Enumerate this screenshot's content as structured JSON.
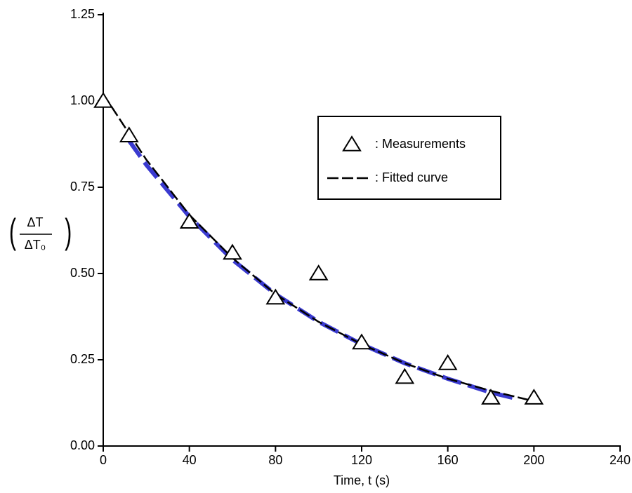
{
  "chart_data": {
    "type": "scatter-line",
    "xlabel": "Time, t (s)",
    "ylabel_numerator": "ΔT",
    "ylabel_denominator": "ΔT₀",
    "xlim": [
      0,
      240
    ],
    "xticks": [
      0,
      40,
      80,
      120,
      160,
      200,
      240
    ],
    "ylim": [
      0,
      1.25
    ],
    "yticks": [
      {
        "value": 0,
        "label": "0.00"
      },
      0.25,
      {
        "value": 0.5,
        "label": "0.50"
      },
      0.75,
      {
        "value": 1,
        "label": "1.00"
      },
      1.25
    ],
    "series": [
      {
        "name": ": Measurements",
        "kind": "marker",
        "color": "#000000",
        "x": [
          0,
          12,
          40,
          60,
          80,
          100,
          120,
          140,
          160,
          180,
          200
        ],
        "values": [
          1.0,
          0.9,
          0.65,
          0.56,
          0.43,
          0.5,
          0.3,
          0.2,
          0.24,
          0.14,
          0.14
        ]
      },
      {
        "name": ": Fitted curve",
        "kind": "line",
        "color": "#000000",
        "x": [
          0,
          20,
          40,
          60,
          80,
          100,
          120,
          140,
          160,
          180,
          200
        ],
        "values": [
          1.02,
          0.83,
          0.67,
          0.545,
          0.44,
          0.36,
          0.295,
          0.24,
          0.195,
          0.16,
          0.13
        ]
      },
      {
        "kind": "line",
        "color": "#3a3ad0",
        "x": [
          12,
          20,
          40,
          60,
          80,
          100,
          120,
          140,
          160,
          180,
          190
        ],
        "values": [
          0.885,
          0.815,
          0.665,
          0.54,
          0.44,
          0.36,
          0.295,
          0.24,
          0.195,
          0.155,
          0.14
        ]
      }
    ],
    "legend": "upper-right"
  }
}
